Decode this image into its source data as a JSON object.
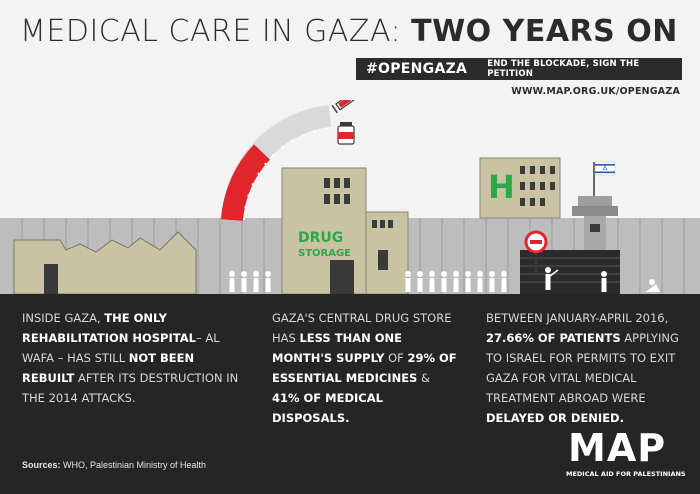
{
  "header": {
    "title_light": "MEDICAL CARE IN GAZA: ",
    "title_bold": "TWO YEARS ON",
    "hashtag": "#OPENGAZA",
    "tagline": "END THE BLOCKADE, SIGN THE PETITION",
    "url": "WWW.MAP.ORG.UK/OPENGAZA"
  },
  "illustration": {
    "drug_building_label_1": "DRUG",
    "drug_building_label_2": "STORAGE",
    "hospital_letter": "H",
    "icons": [
      "syringe-icon",
      "medicine-bottle-icon",
      "israel-flag-icon",
      "no-entry-sign-icon",
      "person-icon"
    ]
  },
  "facts": {
    "col1": {
      "p1": "Inside Gaza, ",
      "b1": "the only rehabilitation hospital",
      "p2": "– Al Wafa – has still ",
      "b2": "not been rebuilt",
      "p3": " after its destruction in the 2014 attacks."
    },
    "col2": {
      "p1": "Gaza's central drug store has ",
      "b1": "less than one month's supply",
      "p2": " of ",
      "b2": "29% of essential medicines",
      "p3": " & ",
      "b3": "41% of medical disposals."
    },
    "col3": {
      "p1": "Between January-April 2016, ",
      "b1": "27.66% of patients",
      "p2": " applying to Israel for permits to exit Gaza for vital medical treatment abroad were ",
      "b2": "delayed or denied."
    }
  },
  "footer": {
    "sources_label": "Sources:",
    "sources_text": " WHO, Palestinian Ministry of Health",
    "logo_word": "MAP",
    "logo_sub_a": "MEDICAL AID FOR ",
    "logo_sub_b": "PALESTINIANS"
  },
  "colors": {
    "dark": "#252525",
    "accent_red": "#e0262b",
    "green": "#2ca84a",
    "building": "#c9c3a3"
  }
}
